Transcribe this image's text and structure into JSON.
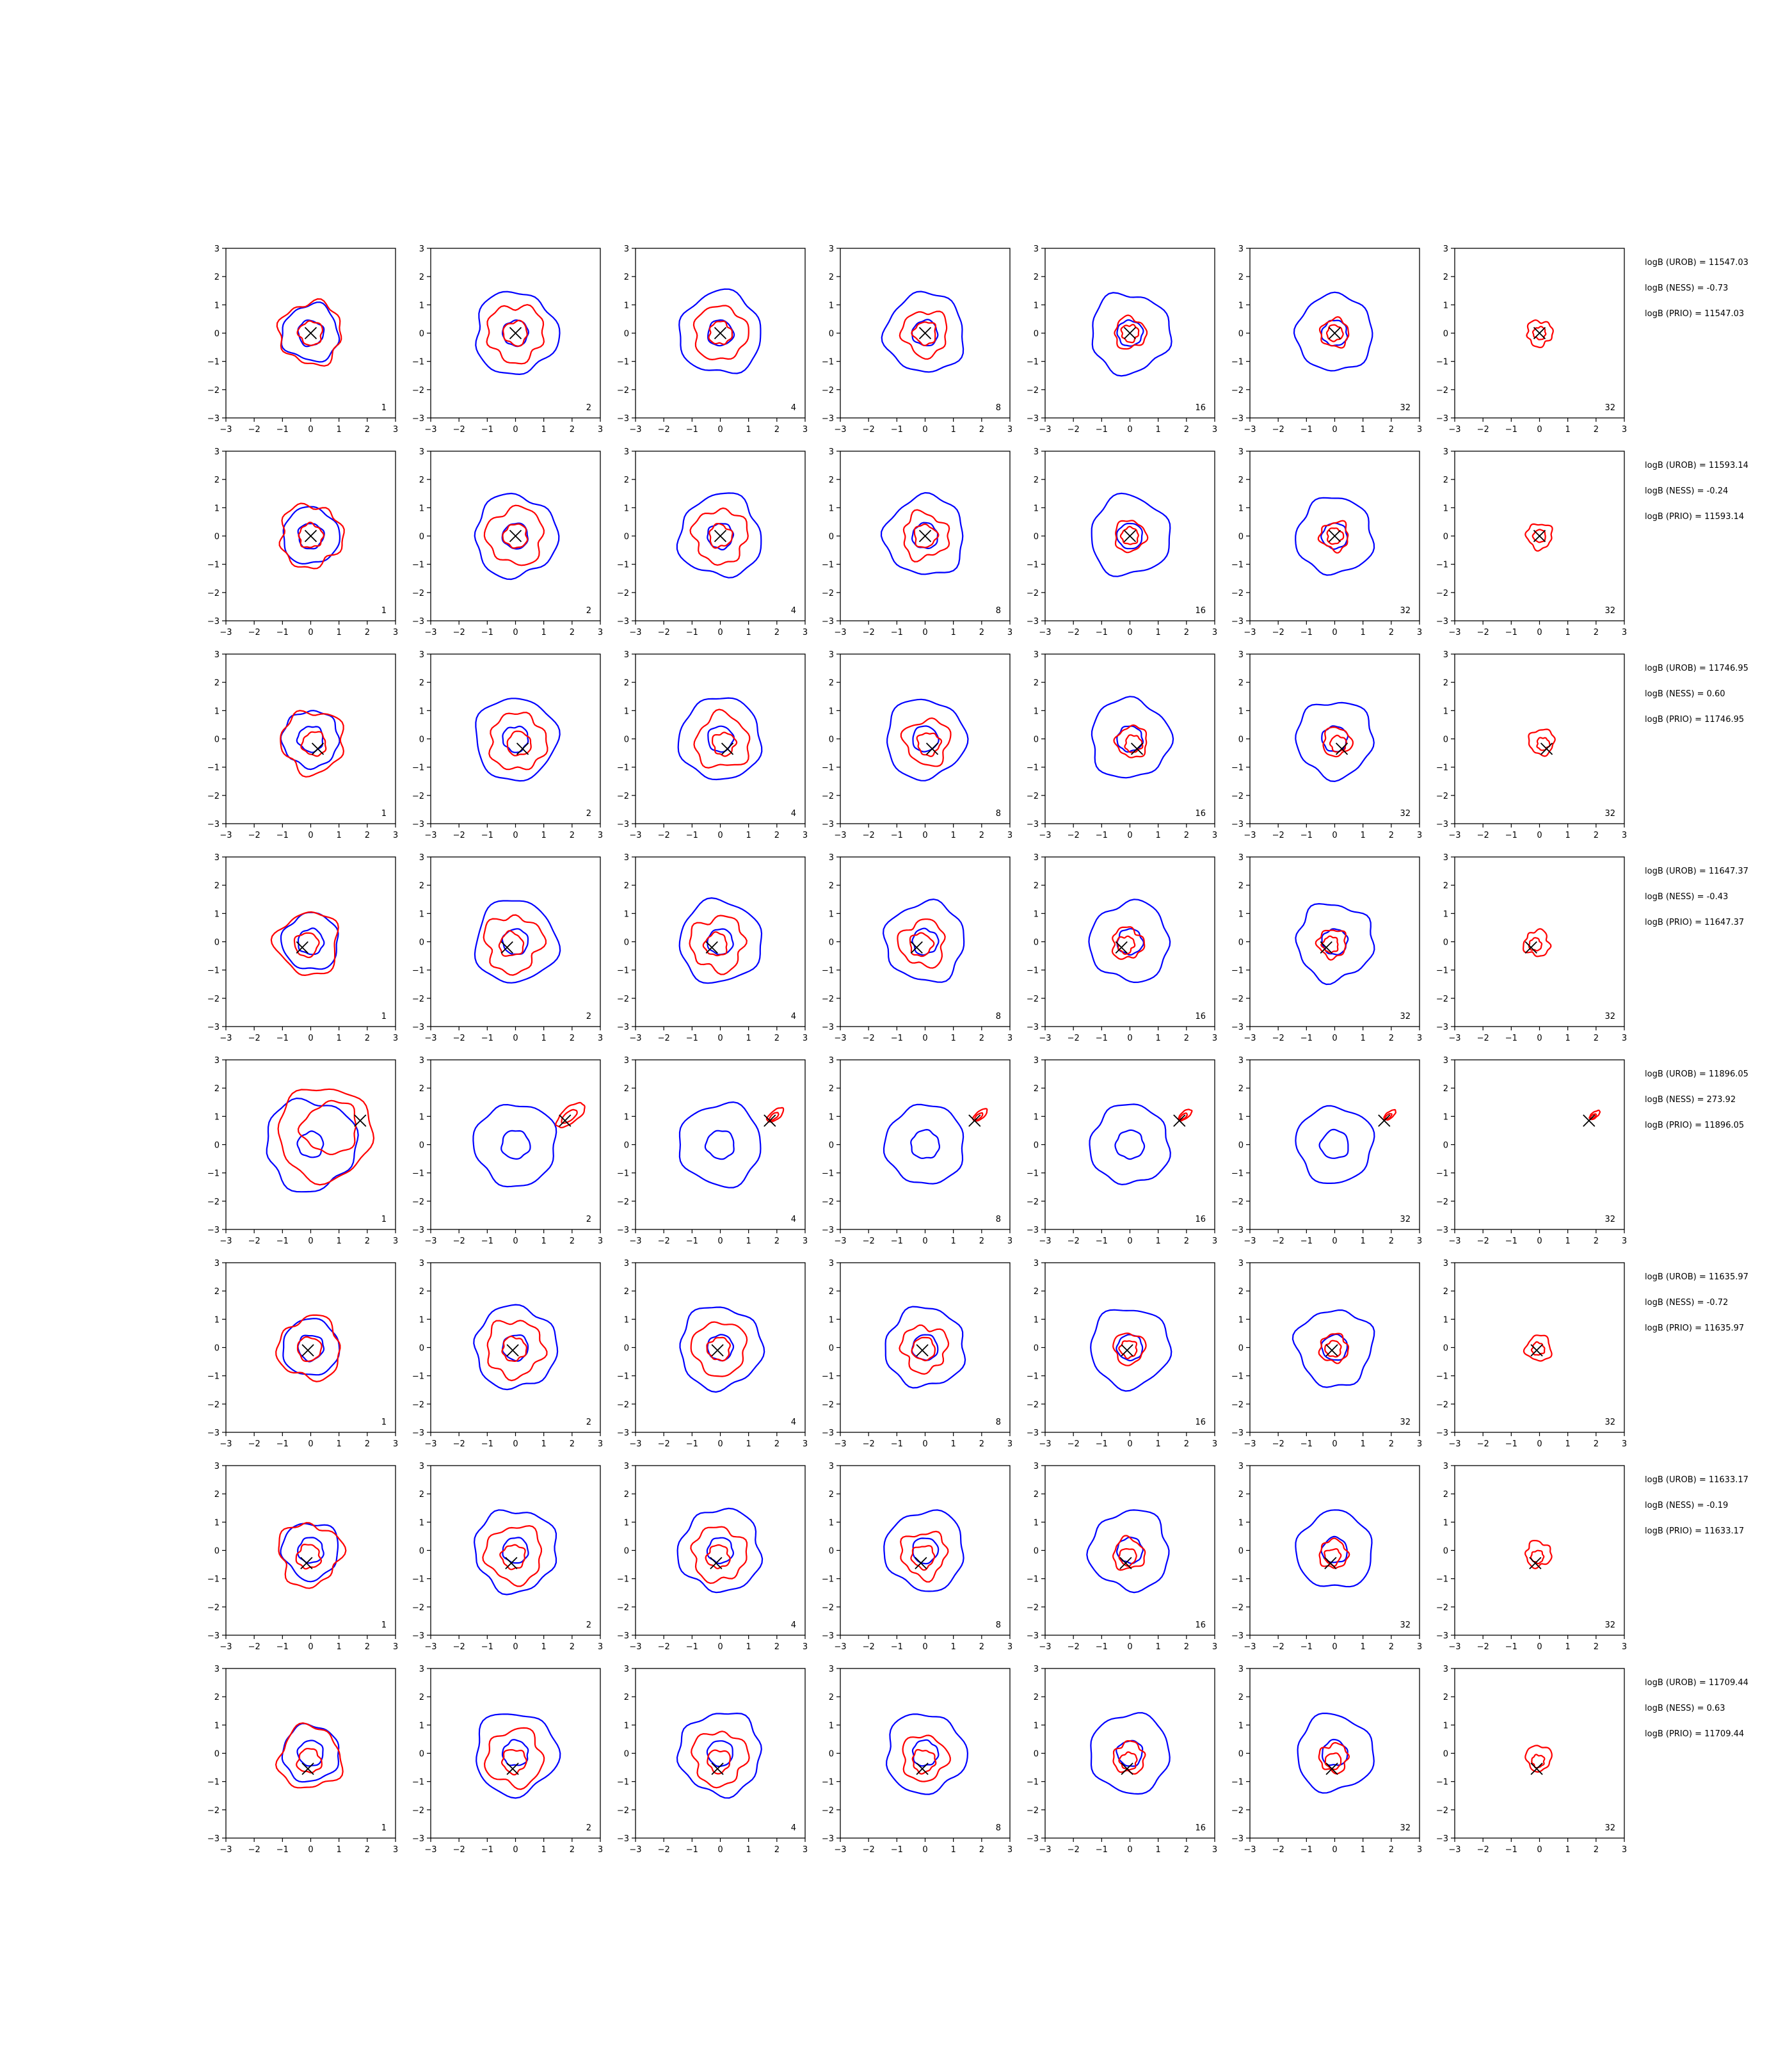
{
  "chart_data": {
    "type": "contour",
    "title": "",
    "xlabel": "",
    "ylabel": "",
    "xlim": [
      -3,
      3
    ],
    "ylim": [
      -3,
      3
    ],
    "ticks": [
      "−3",
      "−2",
      "−1",
      "0",
      "1",
      "2",
      "3"
    ],
    "grid": false,
    "legend": "none",
    "colors": {
      "blue": "#0000ff",
      "red": "#ff0000",
      "marker": "#000000"
    },
    "columns": [
      "1",
      "2",
      "4",
      "8",
      "16",
      "32",
      "32"
    ],
    "rows": [
      {
        "marker": [
          0.0,
          0.0
        ],
        "logB_UROB": "logB (UROB) = 11547.03",
        "logB_NESS": "logB (NESS) = -0.73",
        "logB_PRIO": "logB (PRIO) = 11547.03"
      },
      {
        "marker": [
          0.0,
          0.0
        ],
        "logB_UROB": "logB (UROB) = 11593.14",
        "logB_NESS": "logB (NESS) = -0.24",
        "logB_PRIO": "logB (PRIO) = 11593.14"
      },
      {
        "marker": [
          0.25,
          -0.35
        ],
        "logB_UROB": "logB (UROB) = 11746.95",
        "logB_NESS": "logB (NESS) = 0.60",
        "logB_PRIO": "logB (PRIO) = 11746.95"
      },
      {
        "marker": [
          -0.3,
          -0.2
        ],
        "logB_UROB": "logB (UROB) = 11647.37",
        "logB_NESS": "logB (NESS) = -0.43",
        "logB_PRIO": "logB (PRIO) = 11647.37"
      },
      {
        "marker": [
          1.75,
          0.85
        ],
        "logB_UROB": "logB (UROB) = 11896.05",
        "logB_NESS": "logB (NESS) = 273.92",
        "logB_PRIO": "logB (PRIO) = 11896.05"
      },
      {
        "marker": [
          -0.1,
          -0.1
        ],
        "logB_UROB": "logB (UROB) = 11635.97",
        "logB_NESS": "logB (NESS) = -0.72",
        "logB_PRIO": "logB (PRIO) = 11635.97"
      },
      {
        "marker": [
          -0.15,
          -0.45
        ],
        "logB_UROB": "logB (UROB) = 11633.17",
        "logB_NESS": "logB (NESS) = -0.19",
        "logB_PRIO": "logB (PRIO) = 11633.17"
      },
      {
        "marker": [
          -0.1,
          -0.55
        ],
        "logB_UROB": "logB (UROB) = 11709.44",
        "logB_NESS": "logB (NESS) = 0.63",
        "logB_PRIO": "logB (PRIO) = 11709.44"
      }
    ]
  }
}
